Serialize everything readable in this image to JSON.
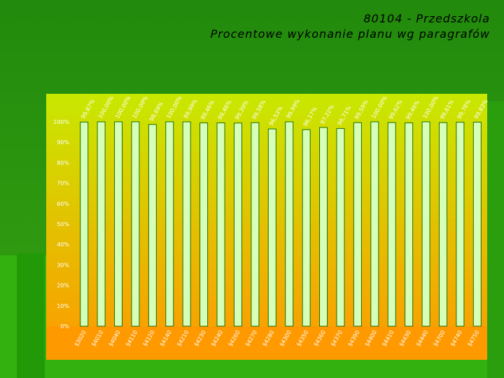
{
  "title_line1": "80104 - Przedszkola",
  "title_line2": "Procentowe wykonanie planu wg paragrafów",
  "colors": {
    "background": "#2f9a10",
    "plot_top": "#c8e800",
    "plot_bottom": "#ff9900",
    "bar_fill": "#d6ffb8",
    "bar_stroke": "#1f6b06"
  },
  "chart_data": {
    "type": "bar",
    "title": "80104 - Przedszkola",
    "subtitle": "Procentowe wykonanie planu wg paragrafów",
    "xlabel": "",
    "ylabel": "",
    "ylim": [
      0,
      100
    ],
    "yticks": [
      "0%",
      "10%",
      "20%",
      "30%",
      "40%",
      "50%",
      "60%",
      "70%",
      "80%",
      "90%",
      "100%"
    ],
    "grid": false,
    "legend": "none",
    "categories": [
      "§3020",
      "§4010",
      "§4040",
      "§4110",
      "§4120",
      "§4140",
      "§4210",
      "§4230",
      "§4240",
      "§4260",
      "§4270",
      "§4280",
      "§4300",
      "§4350",
      "§4360",
      "§4370",
      "§4390",
      "§4400",
      "§4410",
      "§4430",
      "§4440",
      "§4700",
      "§4740",
      "§4750"
    ],
    "values": [
      99.87,
      100.0,
      100.0,
      100.0,
      98.69,
      100.0,
      99.99,
      99.46,
      99.46,
      99.39,
      99.58,
      96.53,
      99.99,
      96.17,
      97.22,
      96.71,
      99.59,
      100.0,
      99.62,
      99.46,
      100.0,
      99.61,
      99.78,
      99.83
    ],
    "data_labels": [
      "99,87%",
      "100,00%",
      "100,00%",
      "100,00%",
      "98,69%",
      "100,00%",
      "99,99%",
      "99,46%",
      "99,46%",
      "99,39%",
      "99,58%",
      "96,53%",
      "99,99%",
      "96,17%",
      "97,22%",
      "96,71%",
      "99,59%",
      "100,00%",
      "99,62%",
      "99,46%",
      "100,00%",
      "99,61%",
      "99,78%",
      "99,83%"
    ]
  }
}
